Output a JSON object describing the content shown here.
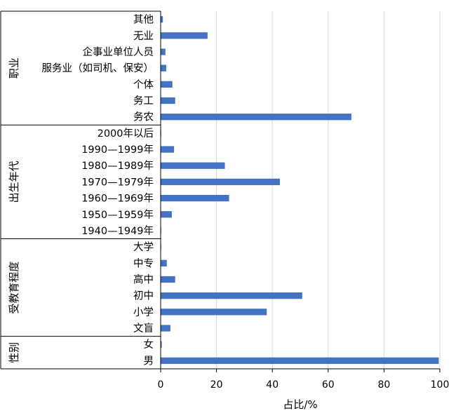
{
  "chart_data": {
    "type": "bar",
    "orientation": "horizontal",
    "title": "",
    "xlabel": "占比/%",
    "ylabel": "",
    "xlim": [
      0,
      100
    ],
    "xticks": [
      0,
      20,
      40,
      60,
      80,
      100
    ],
    "grid": "vertical",
    "bar_color": "#4472C4",
    "groups": [
      {
        "name": "职业",
        "categories": [
          "其他",
          "无业",
          "企事业单位人员",
          "服务业（如司机、保安）",
          "个体",
          "务工",
          "务农"
        ],
        "values": [
          0.8,
          16.8,
          1.7,
          2.0,
          4.2,
          5.2,
          68.3
        ]
      },
      {
        "name": "出生年代",
        "categories": [
          "2000年以后",
          "1990—1999年",
          "1980—1989年",
          "1970—1979年",
          "1960—1969年",
          "1950—1959年",
          "1940—1949年"
        ],
        "values": [
          0.2,
          4.8,
          23.0,
          42.7,
          24.5,
          4.0,
          0.2
        ]
      },
      {
        "name": "受教育程度",
        "categories": [
          "大学",
          "中专",
          "高中",
          "初中",
          "小学",
          "文盲"
        ],
        "values": [
          0.2,
          2.2,
          5.2,
          50.7,
          38.0,
          3.5
        ]
      },
      {
        "name": "性别",
        "categories": [
          "女",
          "男"
        ],
        "values": [
          0.4,
          99.6
        ]
      }
    ]
  }
}
